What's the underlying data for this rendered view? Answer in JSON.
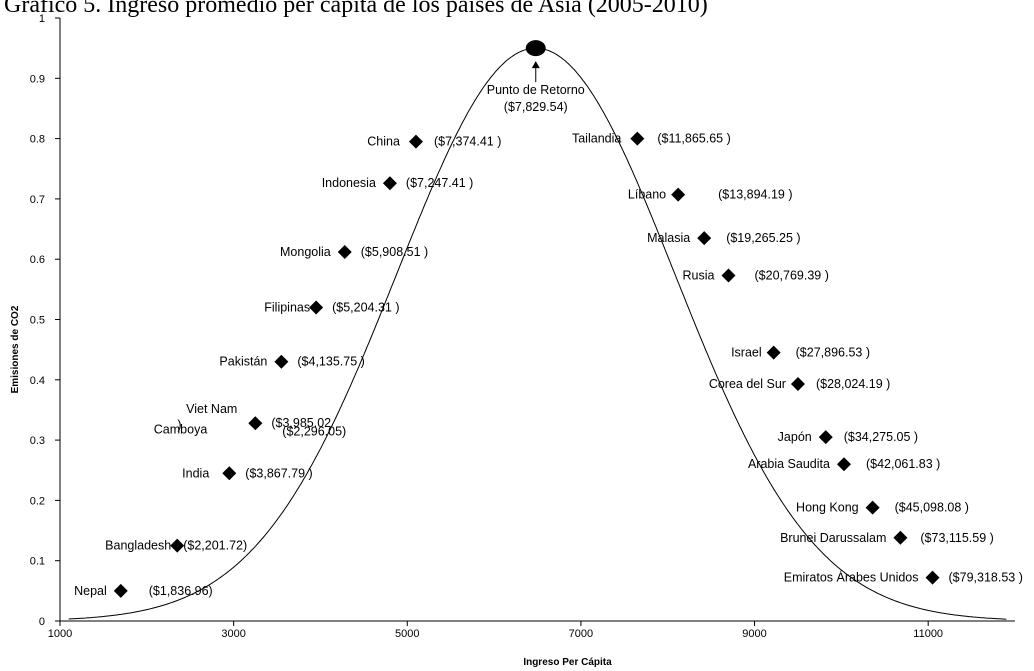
{
  "chart_data": {
    "type": "scatter",
    "title": "Gráfico 5. Ingreso promedio per cápita de los países de Asia (2005-2010)",
    "xlabel": "Ingreso Per Cápita",
    "ylabel": "Emisiones de CO2",
    "xlim": [
      1000,
      12000
    ],
    "ylim": [
      0,
      1
    ],
    "x_ticks": [
      "1000",
      "3000",
      "5000",
      "7000",
      "9000",
      "11000"
    ],
    "y_ticks": [
      "0",
      "0.1",
      "0.2",
      "0.3",
      "0.4",
      "0.5",
      "0.6",
      "0.7",
      "0.8",
      "0.9",
      "1"
    ],
    "grid": false,
    "legend": "none",
    "series": [
      {
        "points": [
          {
            "name": "Nepal",
            "value_label": "($1,836.96)",
            "x": 1700,
            "y": 0.05
          },
          {
            "name": "Bangladesh",
            "value_label": "($2,201.72)",
            "x": 2350,
            "y": 0.125
          },
          {
            "name": "Camboya",
            "value_label": "($2,296.05)",
            "x": null,
            "y": null
          },
          {
            "name": "India",
            "value_label": "($3,867.79 )",
            "x": 2950,
            "y": 0.245
          },
          {
            "name": "Viet Nam\n)",
            "value_label": "($3,985.02",
            "x": 3250,
            "y": 0.328
          },
          {
            "name": "Pakistán",
            "value_label": "($4,135.75 )",
            "x": 3550,
            "y": 0.43
          },
          {
            "name": "Filipinas",
            "value_label": "($5,204.31 )",
            "x": 3950,
            "y": 0.52
          },
          {
            "name": "Mongolia",
            "value_label": "($5,908.51 )",
            "x": 4280,
            "y": 0.612
          },
          {
            "name": "Indonesia",
            "value_label": "($7,247.41 )",
            "x": 4800,
            "y": 0.726
          },
          {
            "name": "China",
            "value_label": "($7,374.41 )",
            "x": 5100,
            "y": 0.795
          },
          {
            "name": "Tailandia",
            "value_label": "($11,865.65 )",
            "x": 7650,
            "y": 0.8
          },
          {
            "name": "Líbano",
            "value_label": "($13,894.19 )",
            "x": 8120,
            "y": 0.707
          },
          {
            "name": "Malasia",
            "value_label": "($19,265.25 )",
            "x": 8420,
            "y": 0.635
          },
          {
            "name": "Rusia",
            "value_label": "($20,769.39 )",
            "x": 8700,
            "y": 0.573
          },
          {
            "name": "Israel",
            "value_label": "($27,896.53 )",
            "x": 9220,
            "y": 0.445
          },
          {
            "name": "Corea del Sur",
            "value_label": "($28,024.19 )",
            "x": 9500,
            "y": 0.393
          },
          {
            "name": "Japón",
            "value_label": "($34,275.05 )",
            "x": 9820,
            "y": 0.305
          },
          {
            "name": "Arabia Saudita",
            "value_label": "($42,061.83 )",
            "x": 10030,
            "y": 0.26
          },
          {
            "name": "Hong Kong",
            "value_label": "($45,098.08 )",
            "x": 10360,
            "y": 0.188
          },
          {
            "name": "Brunei Darussalam",
            "value_label": "($73,115.59 )",
            "x": 10680,
            "y": 0.138
          },
          {
            "name": "Emiratos Árabes Unidos",
            "value_label": "($79,318.53 )",
            "x": 11050,
            "y": 0.072
          }
        ]
      }
    ],
    "turning_point": {
      "label": "Punto de Retorno",
      "value_label": "($7,829.54)",
      "x": 6480,
      "y": 0.95
    },
    "curve": {
      "type": "gaussian-fit",
      "x_range": [
        1100,
        11900
      ]
    }
  }
}
